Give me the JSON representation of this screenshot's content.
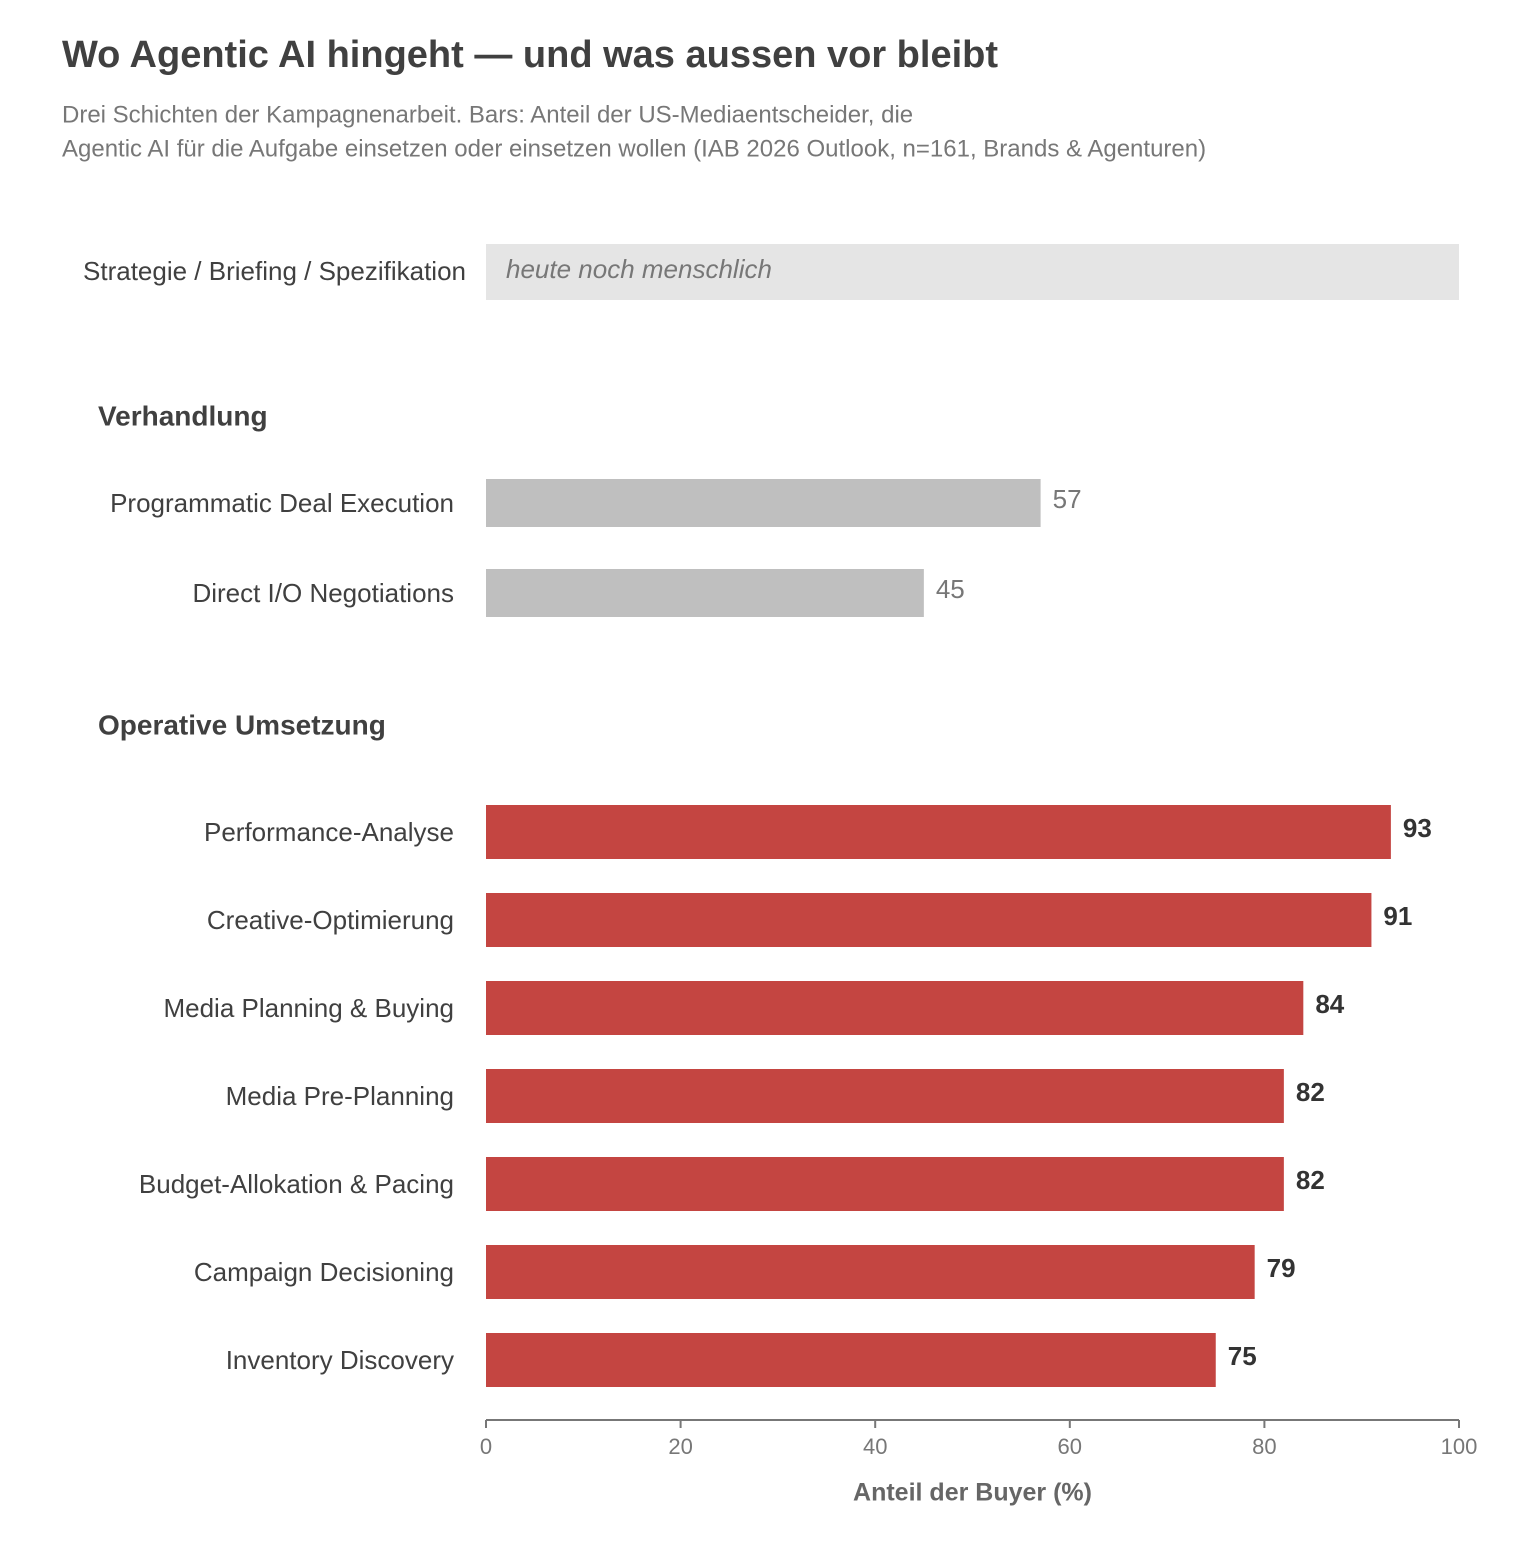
{
  "chart_data": {
    "type": "bar",
    "title": "Wo Agentic AI hingeht — und was aussen vor bleibt",
    "subtitle": [
      "Drei Schichten der Kampagnenarbeit. Bars: Anteil der US-Mediaentscheider, die",
      "Agentic AI für die Aufgabe einsetzen oder einsetzen wollen (IAB 2026 Outlook, n=161, Brands & Agenturen)"
    ],
    "note_row": {
      "label": "Strategie / Briefing / Spezifikation",
      "text": "heute noch menschlich",
      "color": "#e5e5e5"
    },
    "groups": [
      {
        "name": "Verhandlung",
        "color": "#bfbfbf",
        "bold_labels": false,
        "categories": [
          "Programmatic Deal Execution",
          "Direct I/O Negotiations"
        ],
        "values": [
          57,
          45
        ]
      },
      {
        "name": "Operative Umsetzung",
        "color": "#c44541",
        "bold_labels": true,
        "categories": [
          "Performance-Analyse",
          "Creative-Optimierung",
          "Media Planning & Buying",
          "Media Pre-Planning",
          "Budget-Allokation & Pacing",
          "Campaign Decisioning",
          "Inventory Discovery"
        ],
        "values": [
          93,
          91,
          84,
          82,
          82,
          79,
          75
        ]
      }
    ],
    "xlabel": "Anteil der Buyer (%)",
    "xlim": [
      0,
      100
    ],
    "xticks": [
      0,
      20,
      40,
      60,
      80,
      100
    ]
  }
}
